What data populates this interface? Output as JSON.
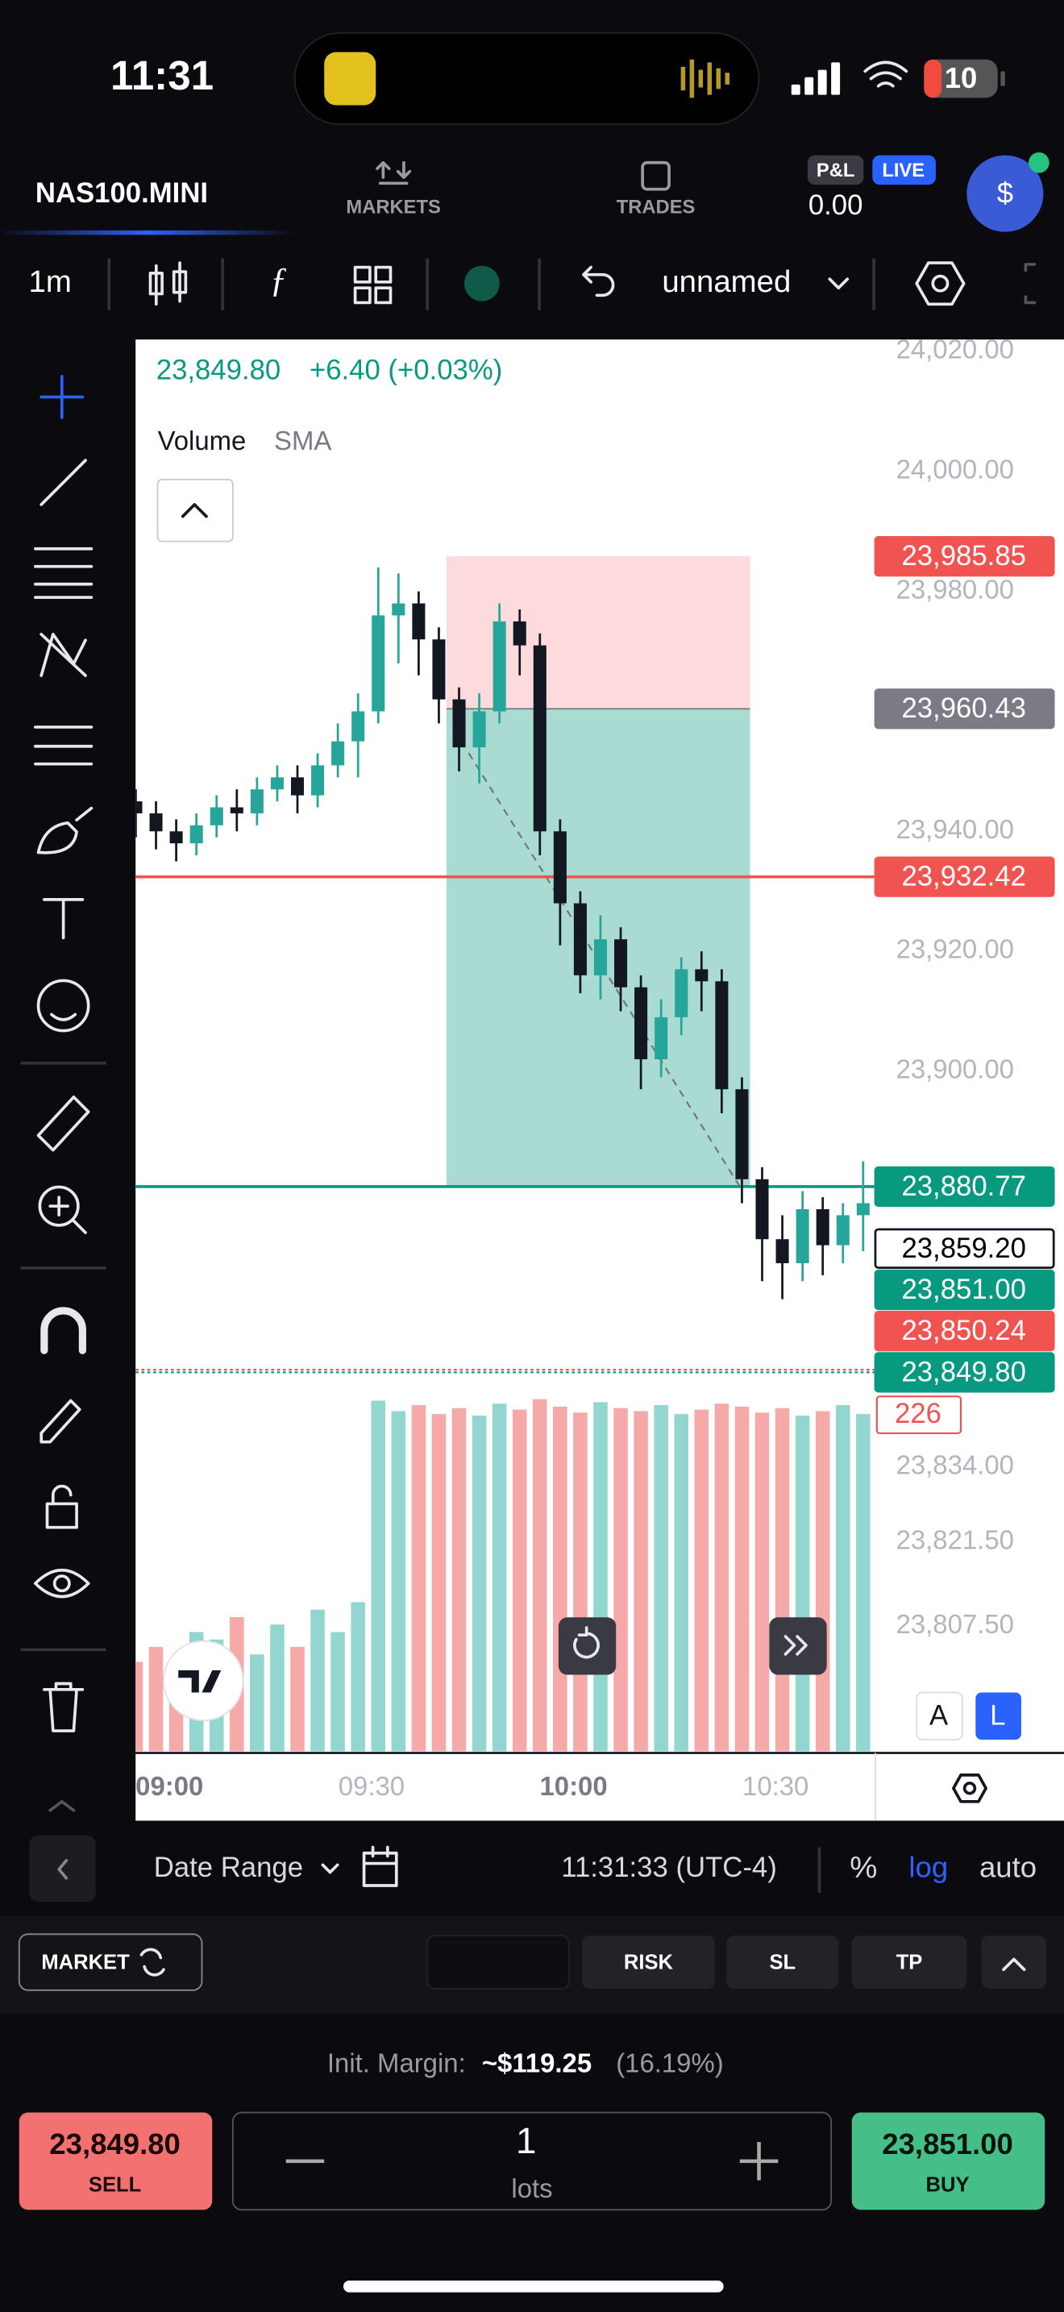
{
  "status_bar": {
    "time": "11:31",
    "battery": "10"
  },
  "header": {
    "symbol": "NAS100.MINI",
    "tabs": [
      "MARKETS",
      "TRADES"
    ],
    "pnl_badge": "P&L",
    "live_badge": "LIVE",
    "pnl": "0.00",
    "account_icon": "$"
  },
  "toolbar": {
    "interval": "1m",
    "layout_name": "unnamed"
  },
  "chart_data": {
    "type": "candlestick",
    "legend_change": "+6.40 (+0.03%)",
    "indicator": "Volume",
    "indicator_detail": "SMA",
    "x": [
      "08:55",
      "08:58",
      "09:01",
      "09:04",
      "09:07",
      "09:10",
      "09:13",
      "09:16",
      "09:19",
      "09:22",
      "09:25",
      "09:28",
      "09:31",
      "09:34",
      "09:37",
      "09:40",
      "09:43",
      "09:46",
      "09:49",
      "09:52",
      "09:55",
      "09:58",
      "10:01",
      "10:04",
      "10:07",
      "10:10",
      "10:13",
      "10:16",
      "10:19",
      "10:22",
      "10:25",
      "10:28",
      "10:31",
      "10:34",
      "10:37",
      "10:40",
      "10:43"
    ],
    "open": [
      23945,
      23943,
      23940,
      23938,
      23941,
      23944,
      23943,
      23947,
      23949,
      23946,
      23951,
      23955,
      23960,
      23976,
      23978,
      23972,
      23962,
      23954,
      23960,
      23975,
      23971,
      23940,
      23928,
      23916,
      23922,
      23914,
      23902,
      23909,
      23917,
      23915,
      23897,
      23882,
      23872,
      23868,
      23877,
      23871,
      23876
    ],
    "high": [
      23947,
      23945,
      23942,
      23943,
      23946,
      23947,
      23949,
      23951,
      23951,
      23953,
      23958,
      23963,
      23984,
      23983,
      23980,
      23974,
      23964,
      23963,
      23978,
      23977,
      23973,
      23942,
      23930,
      23926,
      23924,
      23916,
      23912,
      23919,
      23920,
      23917,
      23899,
      23884,
      23876,
      23880,
      23879,
      23878,
      23885
    ],
    "low": [
      23939,
      23937,
      23935,
      23936,
      23939,
      23940,
      23941,
      23945,
      23943,
      23944,
      23949,
      23949,
      23958,
      23968,
      23966,
      23958,
      23950,
      23948,
      23958,
      23966,
      23936,
      23921,
      23913,
      23912,
      23910,
      23897,
      23899,
      23906,
      23910,
      23893,
      23878,
      23865,
      23862,
      23865,
      23866,
      23868,
      23870
    ],
    "close": [
      23943,
      23940,
      23938,
      23941,
      23944,
      23943,
      23947,
      23949,
      23946,
      23951,
      23955,
      23960,
      23976,
      23978,
      23972,
      23962,
      23954,
      23960,
      23975,
      23971,
      23940,
      23928,
      23916,
      23922,
      23914,
      23902,
      23909,
      23917,
      23915,
      23897,
      23882,
      23872,
      23868,
      23877,
      23871,
      23876,
      23878
    ],
    "volume": [
      60,
      70,
      55,
      80,
      75,
      90,
      65,
      85,
      70,
      95,
      80,
      100,
      235,
      228,
      232,
      226,
      230,
      225,
      233,
      229,
      236,
      231,
      227,
      234,
      230,
      228,
      232,
      226,
      229,
      233,
      231,
      227,
      230,
      225,
      228,
      232,
      226
    ],
    "up_color": "#26a69a",
    "down_color": "#131722",
    "volume_up_color": "#92d6cf",
    "volume_down_color": "#f5a9a9",
    "ylim": [
      23786.6,
      24022
    ],
    "yticks": [
      {
        "value": 24020,
        "label": "24,020.00"
      },
      {
        "value": 24000,
        "label": "24,000.00"
      },
      {
        "value": 23980,
        "label": "23,980.00"
      },
      {
        "value": 23940,
        "label": "23,940.00"
      },
      {
        "value": 23920,
        "label": "23,920.00"
      },
      {
        "value": 23900,
        "label": "23,900.00"
      },
      {
        "value": 23834,
        "label": "23,834.00"
      },
      {
        "value": 23821.5,
        "label": "23,821.50"
      },
      {
        "value": 23807.5,
        "label": "23,807.50"
      }
    ],
    "volume_ylim": [
      0,
      235
    ],
    "last_volume": 226,
    "xticks": [
      "09:00",
      "09:30",
      "10:00",
      "10:30"
    ],
    "price_lines": [
      {
        "value": 23985.85,
        "label": "23,985.85",
        "color": "#f05350",
        "text_color": "#ffffff",
        "line": "none"
      },
      {
        "value": 23960.43,
        "label": "23,960.43",
        "color": "#7b7b85",
        "text_color": "#ffffff",
        "line": "none"
      },
      {
        "value": 23932.42,
        "label": "23,932.42",
        "color": "#f05350",
        "text_color": "#ffffff",
        "line": "solid"
      },
      {
        "value": 23880.77,
        "label": "23,880.77",
        "color": "#089981",
        "text_color": "#ffffff",
        "line": "solid"
      },
      {
        "value": 23859.2,
        "label": "23,859.20",
        "color": "#ffffff",
        "text_color": "#000000",
        "line": "none"
      },
      {
        "value": 23851.0,
        "label": "23,851.00",
        "color": "#089981",
        "text_color": "#ffffff",
        "line": "none"
      },
      {
        "value": 23850.24,
        "label": "23,850.24",
        "color": "#f05350",
        "text_color": "#ffffff",
        "line": "dotted"
      },
      {
        "value": 23849.8,
        "label": "23,849.80",
        "color": "#089981",
        "text_color": "#ffffff",
        "line": "dotted"
      }
    ],
    "scale_buttons": [
      "A",
      "L"
    ]
  },
  "bottom_bar": {
    "date_range": "Date Range",
    "clock": "11:31:33 (UTC-4)",
    "scale_options": [
      "%",
      "log",
      "auto"
    ]
  },
  "order_bar": {
    "order_type": "MARKET",
    "buttons": [
      "RISK",
      "SL",
      "TP"
    ],
    "margin_label": "Init. Margin:",
    "margin_value": "~$119.25",
    "margin_pct": "(16.19%)",
    "sell_label": "SELL",
    "quantity": "1",
    "quantity_unit": "lots",
    "buy_label": "BUY"
  }
}
